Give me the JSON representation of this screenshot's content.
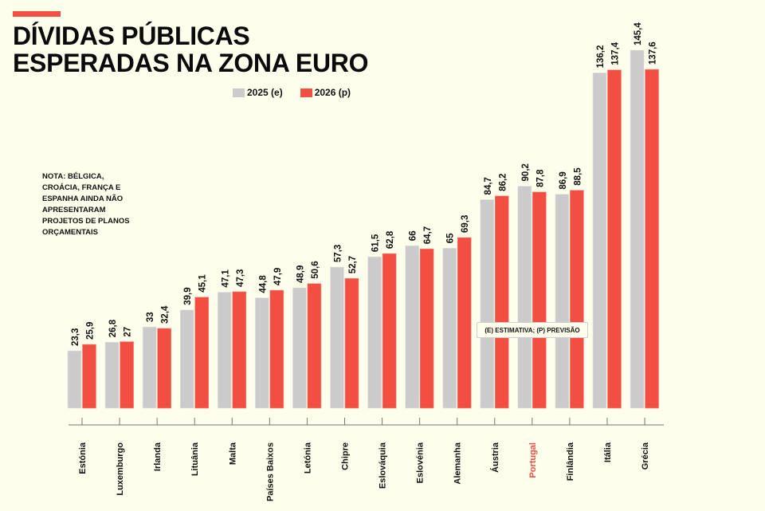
{
  "header": {
    "title_lines": [
      "DÍVIDAS PÚBLICAS",
      "ESPERADAS NA ZONA EURO"
    ]
  },
  "legend": [
    {
      "label": "2025 (e)",
      "color": "#cbcbcb"
    },
    {
      "label": "2026 (p)",
      "color": "#f24e42"
    }
  ],
  "note": {
    "lines": [
      "NOTA: BÉLGICA,",
      "CROÁCIA, FRANÇA E",
      "ESPANHA AINDA NÃO",
      "APRESENTARAM",
      "PROJETOS DE PLANOS",
      "ORÇAMENTAIS"
    ]
  },
  "callout": "(E) ESTIMATIVA; (P) PREVISÃO",
  "colors": {
    "series_2025": "#cbcbcb",
    "series_2026": "#f24e42",
    "highlight_label": "#f24e42",
    "axis": "#777777",
    "text": "#111111"
  },
  "chart_data": {
    "type": "bar",
    "title": "DÍVIDAS PÚBLICAS ESPERADAS NA ZONA EURO",
    "xlabel": "",
    "ylabel": "",
    "ylim": [
      0,
      145.4
    ],
    "grid": false,
    "legend_position": "top-center",
    "categories": [
      "Estónia",
      "Luxemburgo",
      "Irlanda",
      "Lituânia",
      "Malta",
      "Países Baixos",
      "Letónia",
      "Chipre",
      "Eslováquia",
      "Eslovénia",
      "Alemanha",
      "Áustria",
      "Portugal",
      "Finlândia",
      "Itália",
      "Grécia"
    ],
    "highlight_category": "Portugal",
    "series": [
      {
        "name": "2025 (e)",
        "values": [
          23.3,
          26.8,
          33,
          39.9,
          47.1,
          44.8,
          48.9,
          57.3,
          61.5,
          66,
          65,
          84.7,
          90.2,
          86.9,
          136.2,
          145.4
        ],
        "labels": [
          "23,3",
          "26,8",
          "33",
          "39,9",
          "47,1",
          "44,8",
          "48,9",
          "57,3",
          "61,5",
          "66",
          "65",
          "84,7",
          "90,2",
          "86,9",
          "136,2",
          "145,4"
        ]
      },
      {
        "name": "2026 (p)",
        "values": [
          25.9,
          27,
          32.4,
          45.1,
          47.3,
          47.9,
          50.6,
          52.7,
          62.8,
          64.7,
          69.3,
          86.2,
          87.8,
          88.5,
          137.4,
          137.6
        ],
        "labels": [
          "25,9",
          "27",
          "32,4",
          "45,1",
          "47,3",
          "47,9",
          "50,6",
          "52,7",
          "62,8",
          "64,7",
          "69,3",
          "86,2",
          "87,8",
          "88,5",
          "137,4",
          "137,6"
        ]
      }
    ]
  }
}
